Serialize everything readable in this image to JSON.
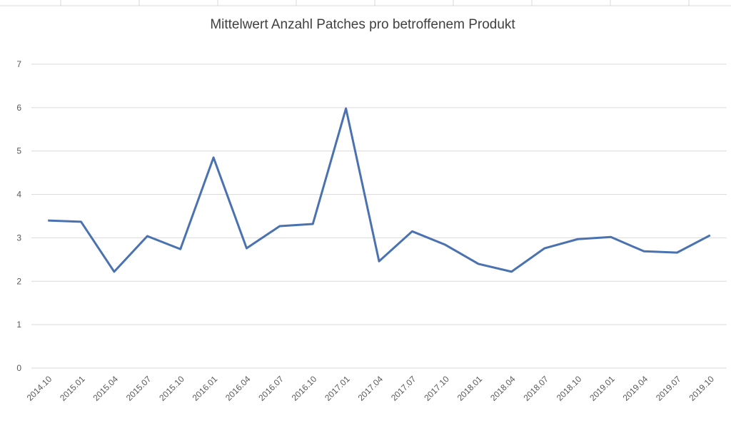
{
  "chart_data": {
    "type": "line",
    "title": "Mittelwert Anzahl Patches pro betroffenem Produkt",
    "categories": [
      "2014.10",
      "2015.01",
      "2015.04",
      "2015.07",
      "2015.10",
      "2016.01",
      "2016.04",
      "2016.07",
      "2016.10",
      "2017.01",
      "2017.04",
      "2017.07",
      "2017.10",
      "2018.01",
      "2018.04",
      "2018.07",
      "2018.10",
      "2019.01",
      "2019.04",
      "2019.07",
      "2019.10"
    ],
    "series": [
      {
        "color": "#4a72b0",
        "values": [
          3.4,
          3.37,
          2.22,
          3.04,
          2.74,
          4.85,
          2.76,
          3.27,
          3.32,
          5.98,
          2.46,
          3.15,
          2.84,
          2.4,
          2.22,
          2.76,
          2.97,
          3.02,
          2.69,
          2.66,
          3.06
        ]
      }
    ],
    "ylim": [
      0,
      7
    ],
    "yticks": [
      0,
      1,
      2,
      3,
      4,
      5,
      6,
      7
    ],
    "grid": true
  }
}
